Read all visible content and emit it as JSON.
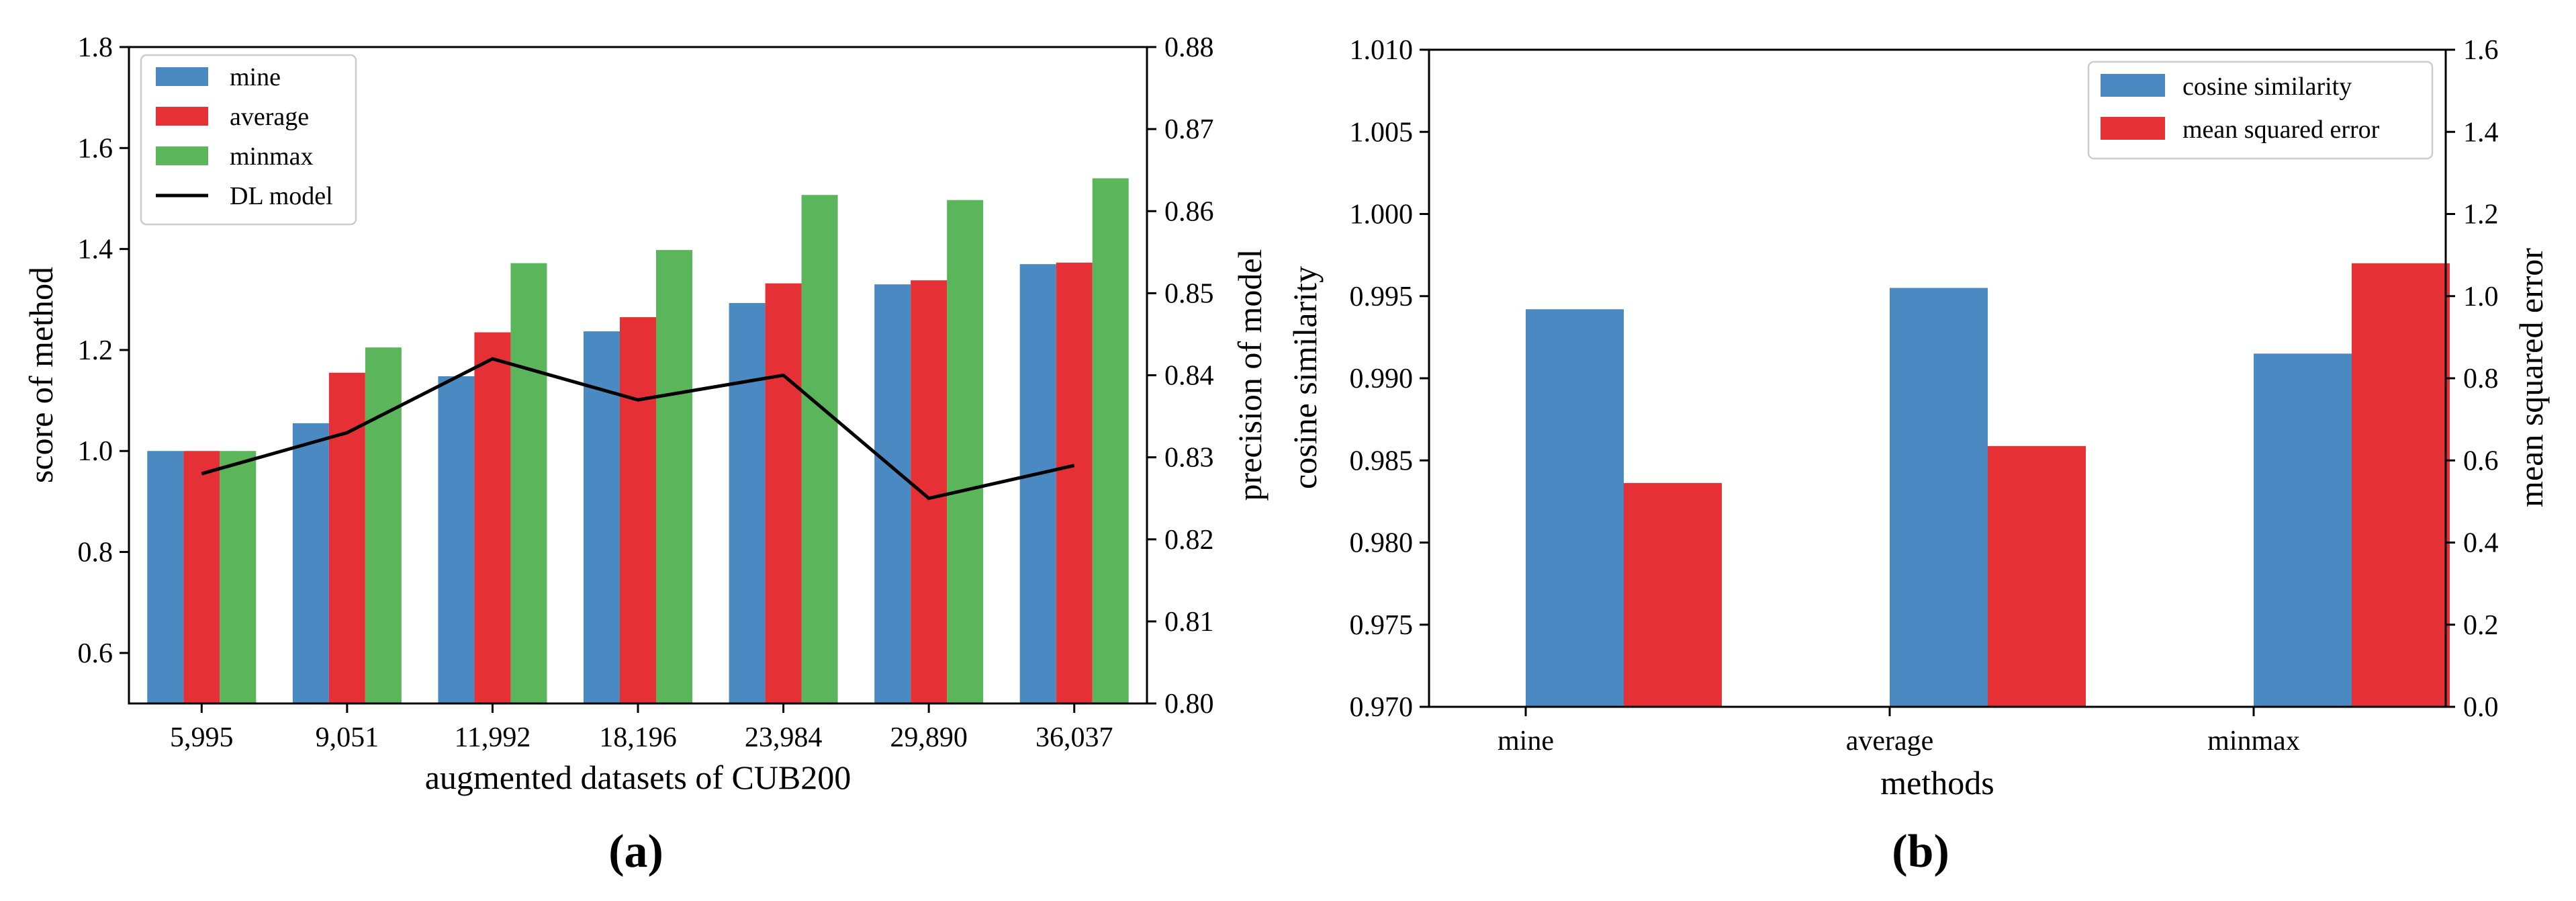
{
  "chart_data": [
    {
      "panel_label": "(a)",
      "type": "bar",
      "categories": [
        "5,995",
        "9,051",
        "11,992",
        "18,196",
        "23,984",
        "29,890",
        "36,037"
      ],
      "series": [
        {
          "name": "mine",
          "color": "#4a89c1",
          "values": [
            1.0,
            1.055,
            1.148,
            1.237,
            1.293,
            1.33,
            1.37
          ]
        },
        {
          "name": "average",
          "color": "#e53135",
          "values": [
            1.0,
            1.155,
            1.235,
            1.265,
            1.332,
            1.338,
            1.373
          ]
        },
        {
          "name": "minmax",
          "color": "#5bb55b",
          "values": [
            1.0,
            1.205,
            1.372,
            1.398,
            1.507,
            1.497,
            1.54
          ]
        }
      ],
      "line_series": {
        "name": "DL model",
        "color": "#000000",
        "axis": "right",
        "values": [
          0.828,
          0.833,
          0.842,
          0.837,
          0.84,
          0.825,
          0.829
        ]
      },
      "xlabel": "augmented datasets of CUB200",
      "ylabel": "score of method",
      "ylabel_right": "precision of model",
      "ylim": [
        0.5,
        1.8
      ],
      "yticks": [
        "0.6",
        "0.8",
        "1.0",
        "1.2",
        "1.4",
        "1.6",
        "1.8"
      ],
      "ylim_right": [
        0.8,
        0.88
      ],
      "yticks_right": [
        "0.80",
        "0.81",
        "0.82",
        "0.83",
        "0.84",
        "0.85",
        "0.86",
        "0.87",
        "0.88"
      ],
      "legend_position": "top-left"
    },
    {
      "panel_label": "(b)",
      "type": "bar",
      "categories": [
        "mine",
        "average",
        "minmax"
      ],
      "series": [
        {
          "name": "cosine similarity",
          "color": "#4a89c1",
          "axis": "left",
          "values": [
            0.9942,
            0.9955,
            0.9915
          ]
        },
        {
          "name": "mean squared error",
          "color": "#e53135",
          "axis": "right",
          "values": [
            0.545,
            0.635,
            1.08
          ]
        }
      ],
      "xlabel": "methods",
      "ylabel": "cosine similarity",
      "ylabel_right": "mean squared error",
      "ylim": [
        0.97,
        1.01
      ],
      "yticks": [
        "0.970",
        "0.975",
        "0.980",
        "0.985",
        "0.990",
        "0.995",
        "1.000",
        "1.005",
        "1.010"
      ],
      "ylim_right": [
        0.0,
        1.6
      ],
      "yticks_right": [
        "0.0",
        "0.2",
        "0.4",
        "0.6",
        "0.8",
        "1.0",
        "1.2",
        "1.4",
        "1.6"
      ],
      "legend_position": "top-right"
    }
  ]
}
